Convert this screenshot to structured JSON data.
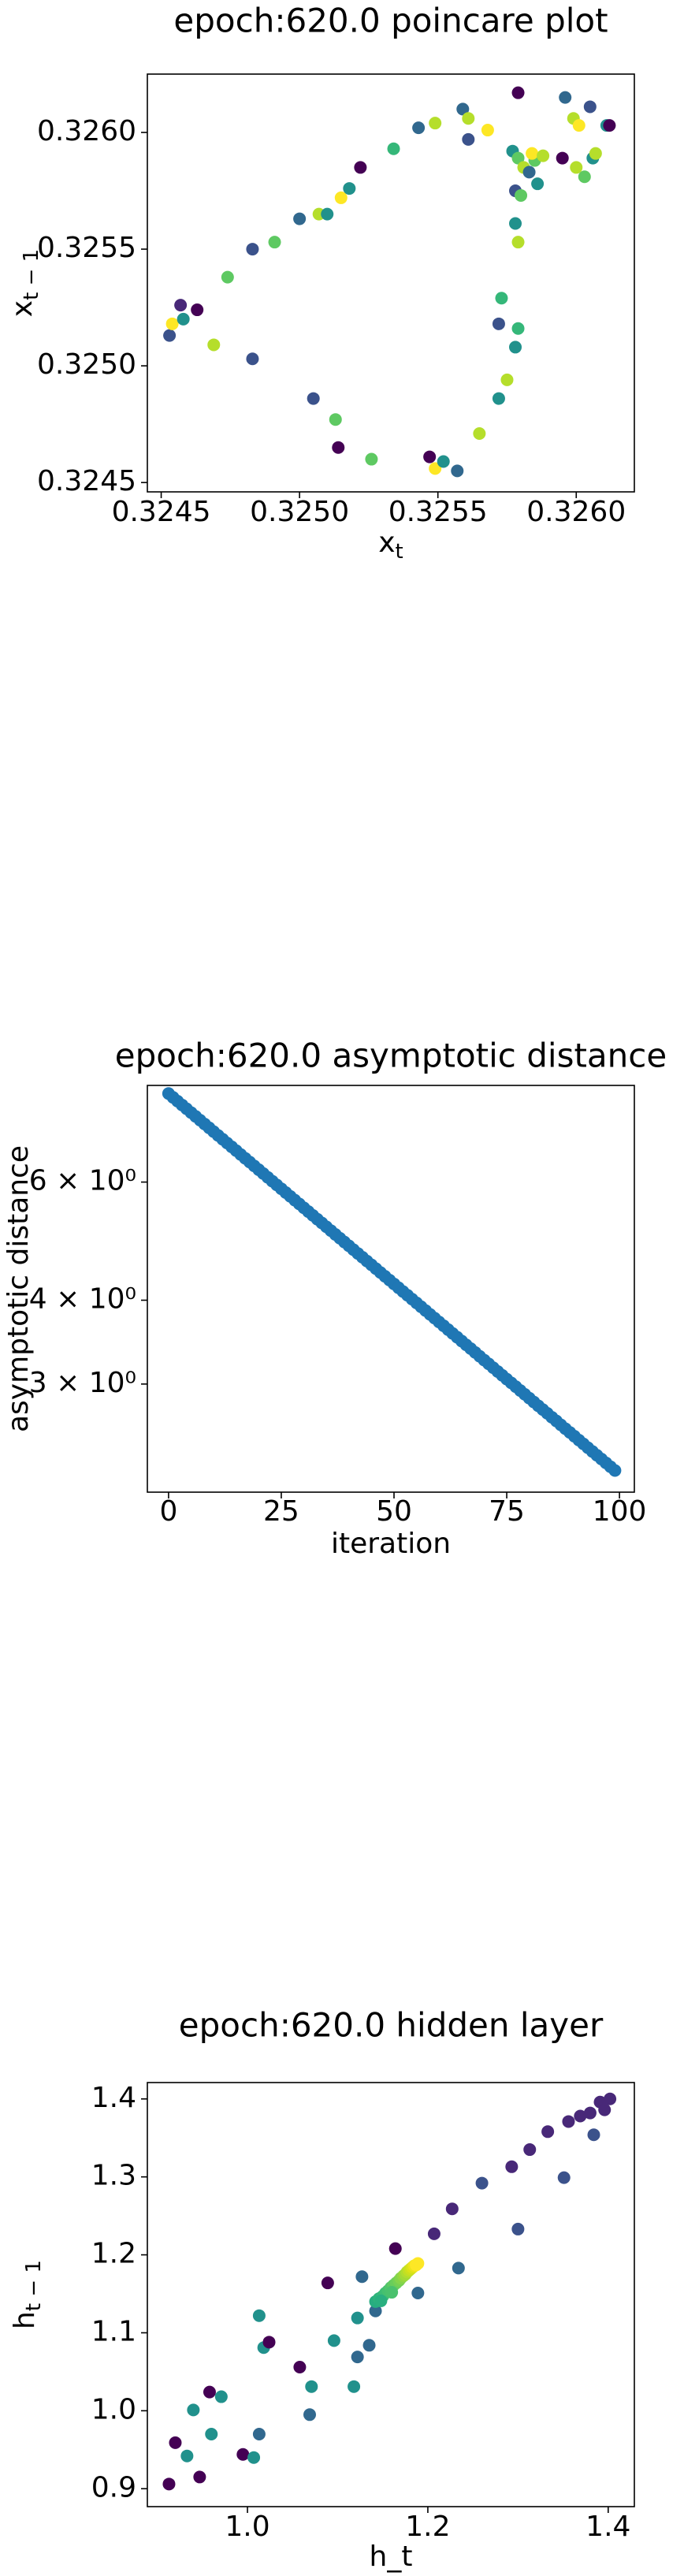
{
  "chart_data": [
    {
      "type": "scatter",
      "title": "epoch:620.0 poincare plot",
      "xlabel": {
        "text": "x",
        "sub": "t"
      },
      "ylabel": {
        "text": "x",
        "sub": "t − 1"
      },
      "x": [
        0.32453,
        0.32454,
        0.32457,
        0.32458,
        0.32463,
        0.32469,
        0.32474,
        0.32483,
        0.32491,
        0.32483,
        0.325,
        0.32505,
        0.32507,
        0.3251,
        0.32513,
        0.32514,
        0.32515,
        0.32518,
        0.32522,
        0.32534,
        0.32526,
        0.32543,
        0.32549,
        0.32547,
        0.32549,
        0.32552,
        0.32557,
        0.32559,
        0.32561,
        0.32561,
        0.32565,
        0.32568,
        0.32572,
        0.32572,
        0.32573,
        0.32575,
        0.32578,
        0.32579,
        0.32579,
        0.32577,
        0.32579,
        0.32578,
        0.32578,
        0.32579,
        0.32581,
        0.32583,
        0.32585,
        0.32584,
        0.32586,
        0.32588,
        0.32595,
        0.32596,
        0.32599,
        0.32601,
        0.32603,
        0.32605,
        0.32606,
        0.32607,
        0.32611,
        0.32612,
        0.326,
        0.3258
      ],
      "values": [
        0.32513,
        0.32518,
        0.32526,
        0.3252,
        0.32524,
        0.32509,
        0.32538,
        0.3255,
        0.32553,
        0.32503,
        0.32563,
        0.32486,
        0.32565,
        0.32565,
        0.32477,
        0.32465,
        0.32572,
        0.32576,
        0.32585,
        0.32593,
        0.3246,
        0.32602,
        0.32604,
        0.32461,
        0.32456,
        0.32459,
        0.32455,
        0.3261,
        0.32606,
        0.32597,
        0.32471,
        0.32601,
        0.32486,
        0.32518,
        0.32529,
        0.32494,
        0.32508,
        0.32516,
        0.32617,
        0.32592,
        0.32553,
        0.32561,
        0.32575,
        0.32589,
        0.32585,
        0.32583,
        0.32588,
        0.32591,
        0.32578,
        0.3259,
        0.32589,
        0.32615,
        0.32606,
        0.32603,
        0.32581,
        0.32611,
        0.32589,
        0.32591,
        0.32603,
        0.32603,
        0.32585,
        0.32573
      ],
      "colors": [
        "#3b528b",
        "#fde725",
        "#482878",
        "#21918c",
        "#440154",
        "#b5de2b",
        "#5ec962",
        "#3b528b",
        "#5ec962",
        "#3b528b",
        "#31688e",
        "#3b528b",
        "#b5de2b",
        "#21918c",
        "#5ec962",
        "#440154",
        "#fde725",
        "#21918c",
        "#440154",
        "#35b779",
        "#5ec962",
        "#31688e",
        "#b5de2b",
        "#440154",
        "#fde725",
        "#21918c",
        "#31688e",
        "#31688e",
        "#b5de2b",
        "#3b528b",
        "#b5de2b",
        "#fde725",
        "#21918c",
        "#3b528b",
        "#35b779",
        "#b5de2b",
        "#21918c",
        "#35b779",
        "#440154",
        "#21918c",
        "#b5de2b",
        "#21918c",
        "#3b528b",
        "#5ec962",
        "#b5de2b",
        "#31688e",
        "#5ec962",
        "#fde725",
        "#21918c",
        "#b5de2b",
        "#440154",
        "#31688e",
        "#b5de2b",
        "#fde725",
        "#5ec962",
        "#3b528b",
        "#21918c",
        "#b5de2b",
        "#21918c",
        "#440154",
        "#b5de2b",
        "#5ec962"
      ],
      "xlim": [
        0.32445,
        0.32621
      ],
      "ylim": [
        0.32446,
        0.32625
      ],
      "xticks": [
        0.3245,
        {
          "value": 0.325,
          "label": "0.3250"
        },
        0.3255,
        {
          "value": 0.326,
          "label": "0.3260"
        }
      ],
      "yticks": [
        0.3245,
        {
          "value": 0.325,
          "label": "0.3250"
        },
        0.3255,
        {
          "value": 0.326,
          "label": "0.3260"
        }
      ]
    },
    {
      "type": "scatter",
      "title": "epoch:620.0 asymptotic distance",
      "xlabel": "iteration",
      "ylabel": "asymptotic distance",
      "yscale": "log",
      "color": "#1f77b4",
      "x": [
        0,
        1,
        2,
        3,
        4,
        5,
        6,
        7,
        8,
        9,
        10,
        11,
        12,
        13,
        14,
        15,
        16,
        17,
        18,
        19,
        20,
        21,
        22,
        23,
        24,
        25,
        26,
        27,
        28,
        29,
        30,
        31,
        32,
        33,
        34,
        35,
        36,
        37,
        38,
        39,
        40,
        41,
        42,
        43,
        44,
        45,
        46,
        47,
        48,
        49,
        50,
        51,
        52,
        53,
        54,
        55,
        56,
        57,
        58,
        59,
        60,
        61,
        62,
        63,
        64,
        65,
        66,
        67,
        68,
        69,
        70,
        71,
        72,
        73,
        74,
        75,
        76,
        77,
        78,
        79,
        80,
        81,
        82,
        83,
        84,
        85,
        86,
        87,
        88,
        89,
        90,
        91,
        92,
        93,
        94,
        95,
        96,
        97,
        98,
        99
      ],
      "values": [
        8.13,
        8.024,
        7.92,
        7.817,
        7.716,
        7.616,
        7.517,
        7.419,
        7.323,
        7.228,
        7.134,
        7.041,
        6.95,
        6.86,
        6.771,
        6.683,
        6.596,
        6.51,
        6.426,
        6.342,
        6.26,
        6.179,
        6.099,
        6.019,
        5.941,
        5.864,
        5.788,
        5.713,
        5.639,
        5.566,
        5.493,
        5.422,
        5.352,
        5.282,
        5.214,
        5.146,
        5.079,
        5.013,
        4.948,
        4.884,
        4.821,
        4.758,
        4.696,
        4.635,
        4.575,
        4.516,
        4.457,
        4.399,
        4.342,
        4.286,
        4.23,
        4.175,
        4.121,
        4.068,
        4.015,
        3.963,
        3.911,
        3.861,
        3.81,
        3.761,
        3.712,
        3.664,
        3.616,
        3.569,
        3.523,
        3.477,
        3.432,
        3.388,
        3.344,
        3.3,
        3.257,
        3.215,
        3.173,
        3.132,
        3.091,
        3.051,
        3.012,
        2.973,
        2.934,
        2.896,
        2.858,
        2.821,
        2.784,
        2.748,
        2.713,
        2.677,
        2.643,
        2.608,
        2.574,
        2.541,
        2.508,
        2.475,
        2.443,
        2.411,
        2.38,
        2.349,
        2.319,
        2.289,
        2.259,
        2.23
      ],
      "xlim": [
        -4.7,
        103.3
      ],
      "ylim": [
        2.07,
        8.36
      ],
      "xticks": [
        0,
        25,
        50,
        75,
        100
      ],
      "yticks": [
        {
          "value": 3,
          "label": "3 × 10⁰"
        },
        {
          "value": 4,
          "label": "4 × 10⁰"
        },
        {
          "value": 6,
          "label": "6 × 10⁰"
        }
      ]
    },
    {
      "type": "scatter",
      "title": "epoch:620.0 hidden layer",
      "xlabel": "h_t",
      "ylabel": {
        "text": "h",
        "sub": "t − 1"
      },
      "x": [
        0.913,
        0.92,
        0.933,
        0.94,
        0.947,
        0.958,
        0.96,
        0.971,
        0.995,
        1.007,
        1.013,
        1.013,
        1.018,
        1.024,
        1.058,
        1.069,
        1.071,
        1.089,
        1.096,
        1.118,
        1.122,
        1.122,
        1.127,
        1.135,
        1.142,
        1.164,
        1.189,
        1.207,
        1.227,
        1.234,
        1.26,
        1.293,
        1.3,
        1.313,
        1.333,
        1.351,
        1.356,
        1.369,
        1.38,
        1.384,
        1.391,
        1.396,
        1.402,
        1.142,
        1.146,
        1.15,
        1.153,
        1.156,
        1.159,
        1.162,
        1.165,
        1.168,
        1.17,
        1.173,
        1.175,
        1.177,
        1.179,
        1.181,
        1.183,
        1.185,
        1.187,
        1.189,
        1.148,
        1.16
      ],
      "values": [
        0.906,
        0.959,
        0.942,
        1.001,
        0.915,
        1.024,
        0.97,
        1.018,
        0.944,
        0.94,
        0.97,
        1.122,
        1.081,
        1.088,
        1.056,
        0.995,
        1.031,
        1.164,
        1.09,
        1.031,
        1.119,
        1.069,
        1.172,
        1.084,
        1.128,
        1.208,
        1.151,
        1.227,
        1.259,
        1.183,
        1.292,
        1.313,
        1.233,
        1.335,
        1.358,
        1.299,
        1.371,
        1.378,
        1.382,
        1.354,
        1.396,
        1.386,
        1.4,
        1.14,
        1.144,
        1.147,
        1.151,
        1.154,
        1.158,
        1.161,
        1.164,
        1.167,
        1.17,
        1.173,
        1.175,
        1.178,
        1.18,
        1.182,
        1.184,
        1.186,
        1.187,
        1.189,
        1.141,
        1.152
      ],
      "colors": [
        "#440154",
        "#440154",
        "#21918c",
        "#21918c",
        "#440154",
        "#440154",
        "#21918c",
        "#21918c",
        "#440154",
        "#21918c",
        "#31688e",
        "#21918c",
        "#21918c",
        "#440154",
        "#440154",
        "#31688e",
        "#21918c",
        "#440154",
        "#21918c",
        "#21918c",
        "#21918c",
        "#31688e",
        "#31688e",
        "#31688e",
        "#31688e",
        "#440154",
        "#31688e",
        "#482878",
        "#482878",
        "#31688e",
        "#3b528b",
        "#482878",
        "#3b528b",
        "#482878",
        "#482878",
        "#3b528b",
        "#482878",
        "#482878",
        "#482878",
        "#3b528b",
        "#482878",
        "#482878",
        "#482878",
        "#27ad81",
        "#2eb37c",
        "#35b779",
        "#3dbc74",
        "#46c06f",
        "#50c46a",
        "#5ec962",
        "#69cd5b",
        "#75d054",
        "#84d44b",
        "#93d741",
        "#a2da37",
        "#b0dd2f",
        "#c0df25",
        "#cde11d",
        "#dde318",
        "#ece51b",
        "#fde725",
        "#fde725",
        "#29af7f",
        "#4ac16d"
      ],
      "xlim": [
        0.889,
        1.429
      ],
      "ylim": [
        0.877,
        1.421
      ],
      "xticks": [
        {
          "value": 1,
          "label": "1.0"
        },
        1.2,
        1.4
      ],
      "yticks": [
        0.9,
        {
          "value": 1,
          "label": "1.0"
        },
        1.1,
        1.2,
        1.3,
        1.4
      ]
    }
  ]
}
